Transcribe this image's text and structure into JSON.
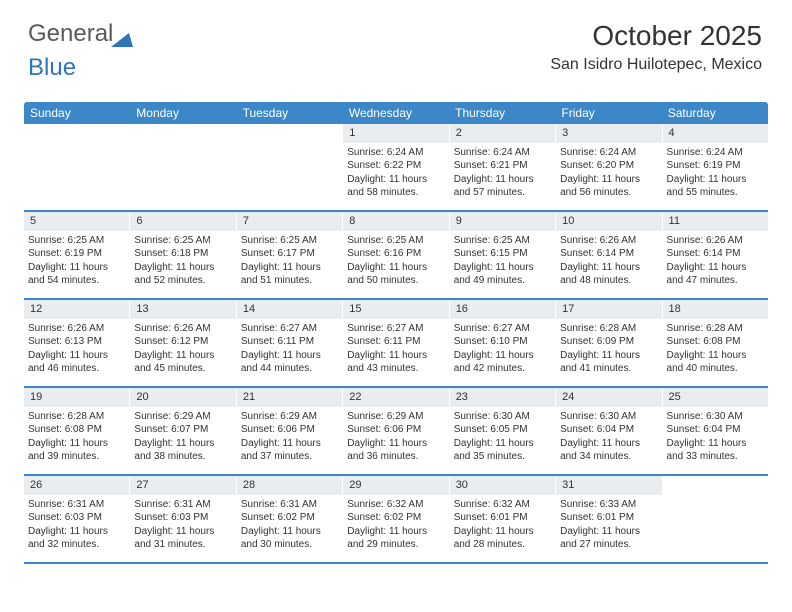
{
  "logo": {
    "part1": "General",
    "part2": "Blue"
  },
  "header": {
    "title": "October 2025",
    "location": "San Isidro Huilotepec, Mexico"
  },
  "colors": {
    "header_bg": "#3b87c8",
    "header_text": "#ffffff",
    "daynum_bg": "#e9edf0",
    "text": "#333333",
    "logo_gray": "#5a5a5a",
    "logo_blue": "#2f76b8"
  },
  "weekdays": [
    "Sunday",
    "Monday",
    "Tuesday",
    "Wednesday",
    "Thursday",
    "Friday",
    "Saturday"
  ],
  "weeks": [
    [
      {
        "n": "",
        "sr": "",
        "ss": "",
        "dl": ""
      },
      {
        "n": "",
        "sr": "",
        "ss": "",
        "dl": ""
      },
      {
        "n": "",
        "sr": "",
        "ss": "",
        "dl": ""
      },
      {
        "n": "1",
        "sr": "Sunrise: 6:24 AM",
        "ss": "Sunset: 6:22 PM",
        "dl": "Daylight: 11 hours and 58 minutes."
      },
      {
        "n": "2",
        "sr": "Sunrise: 6:24 AM",
        "ss": "Sunset: 6:21 PM",
        "dl": "Daylight: 11 hours and 57 minutes."
      },
      {
        "n": "3",
        "sr": "Sunrise: 6:24 AM",
        "ss": "Sunset: 6:20 PM",
        "dl": "Daylight: 11 hours and 56 minutes."
      },
      {
        "n": "4",
        "sr": "Sunrise: 6:24 AM",
        "ss": "Sunset: 6:19 PM",
        "dl": "Daylight: 11 hours and 55 minutes."
      }
    ],
    [
      {
        "n": "5",
        "sr": "Sunrise: 6:25 AM",
        "ss": "Sunset: 6:19 PM",
        "dl": "Daylight: 11 hours and 54 minutes."
      },
      {
        "n": "6",
        "sr": "Sunrise: 6:25 AM",
        "ss": "Sunset: 6:18 PM",
        "dl": "Daylight: 11 hours and 52 minutes."
      },
      {
        "n": "7",
        "sr": "Sunrise: 6:25 AM",
        "ss": "Sunset: 6:17 PM",
        "dl": "Daylight: 11 hours and 51 minutes."
      },
      {
        "n": "8",
        "sr": "Sunrise: 6:25 AM",
        "ss": "Sunset: 6:16 PM",
        "dl": "Daylight: 11 hours and 50 minutes."
      },
      {
        "n": "9",
        "sr": "Sunrise: 6:25 AM",
        "ss": "Sunset: 6:15 PM",
        "dl": "Daylight: 11 hours and 49 minutes."
      },
      {
        "n": "10",
        "sr": "Sunrise: 6:26 AM",
        "ss": "Sunset: 6:14 PM",
        "dl": "Daylight: 11 hours and 48 minutes."
      },
      {
        "n": "11",
        "sr": "Sunrise: 6:26 AM",
        "ss": "Sunset: 6:14 PM",
        "dl": "Daylight: 11 hours and 47 minutes."
      }
    ],
    [
      {
        "n": "12",
        "sr": "Sunrise: 6:26 AM",
        "ss": "Sunset: 6:13 PM",
        "dl": "Daylight: 11 hours and 46 minutes."
      },
      {
        "n": "13",
        "sr": "Sunrise: 6:26 AM",
        "ss": "Sunset: 6:12 PM",
        "dl": "Daylight: 11 hours and 45 minutes."
      },
      {
        "n": "14",
        "sr": "Sunrise: 6:27 AM",
        "ss": "Sunset: 6:11 PM",
        "dl": "Daylight: 11 hours and 44 minutes."
      },
      {
        "n": "15",
        "sr": "Sunrise: 6:27 AM",
        "ss": "Sunset: 6:11 PM",
        "dl": "Daylight: 11 hours and 43 minutes."
      },
      {
        "n": "16",
        "sr": "Sunrise: 6:27 AM",
        "ss": "Sunset: 6:10 PM",
        "dl": "Daylight: 11 hours and 42 minutes."
      },
      {
        "n": "17",
        "sr": "Sunrise: 6:28 AM",
        "ss": "Sunset: 6:09 PM",
        "dl": "Daylight: 11 hours and 41 minutes."
      },
      {
        "n": "18",
        "sr": "Sunrise: 6:28 AM",
        "ss": "Sunset: 6:08 PM",
        "dl": "Daylight: 11 hours and 40 minutes."
      }
    ],
    [
      {
        "n": "19",
        "sr": "Sunrise: 6:28 AM",
        "ss": "Sunset: 6:08 PM",
        "dl": "Daylight: 11 hours and 39 minutes."
      },
      {
        "n": "20",
        "sr": "Sunrise: 6:29 AM",
        "ss": "Sunset: 6:07 PM",
        "dl": "Daylight: 11 hours and 38 minutes."
      },
      {
        "n": "21",
        "sr": "Sunrise: 6:29 AM",
        "ss": "Sunset: 6:06 PM",
        "dl": "Daylight: 11 hours and 37 minutes."
      },
      {
        "n": "22",
        "sr": "Sunrise: 6:29 AM",
        "ss": "Sunset: 6:06 PM",
        "dl": "Daylight: 11 hours and 36 minutes."
      },
      {
        "n": "23",
        "sr": "Sunrise: 6:30 AM",
        "ss": "Sunset: 6:05 PM",
        "dl": "Daylight: 11 hours and 35 minutes."
      },
      {
        "n": "24",
        "sr": "Sunrise: 6:30 AM",
        "ss": "Sunset: 6:04 PM",
        "dl": "Daylight: 11 hours and 34 minutes."
      },
      {
        "n": "25",
        "sr": "Sunrise: 6:30 AM",
        "ss": "Sunset: 6:04 PM",
        "dl": "Daylight: 11 hours and 33 minutes."
      }
    ],
    [
      {
        "n": "26",
        "sr": "Sunrise: 6:31 AM",
        "ss": "Sunset: 6:03 PM",
        "dl": "Daylight: 11 hours and 32 minutes."
      },
      {
        "n": "27",
        "sr": "Sunrise: 6:31 AM",
        "ss": "Sunset: 6:03 PM",
        "dl": "Daylight: 11 hours and 31 minutes."
      },
      {
        "n": "28",
        "sr": "Sunrise: 6:31 AM",
        "ss": "Sunset: 6:02 PM",
        "dl": "Daylight: 11 hours and 30 minutes."
      },
      {
        "n": "29",
        "sr": "Sunrise: 6:32 AM",
        "ss": "Sunset: 6:02 PM",
        "dl": "Daylight: 11 hours and 29 minutes."
      },
      {
        "n": "30",
        "sr": "Sunrise: 6:32 AM",
        "ss": "Sunset: 6:01 PM",
        "dl": "Daylight: 11 hours and 28 minutes."
      },
      {
        "n": "31",
        "sr": "Sunrise: 6:33 AM",
        "ss": "Sunset: 6:01 PM",
        "dl": "Daylight: 11 hours and 27 minutes."
      },
      {
        "n": "",
        "sr": "",
        "ss": "",
        "dl": ""
      }
    ]
  ]
}
